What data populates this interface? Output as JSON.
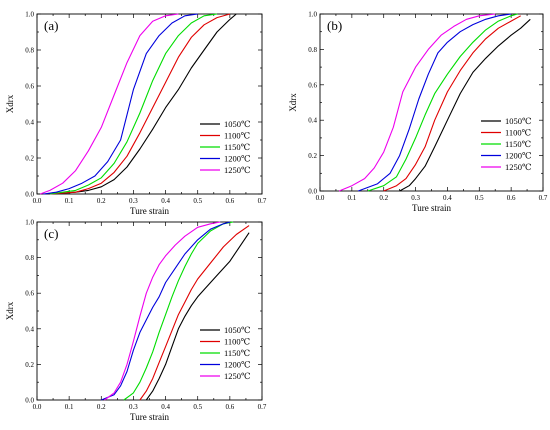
{
  "chart_data": [
    {
      "type": "line",
      "panel_label": "(a)",
      "xlabel": "Ture strain",
      "ylabel": "Xdrx",
      "xlim": [
        0,
        0.7
      ],
      "ylim": [
        0,
        1.0
      ],
      "xticks": [
        "0.0",
        "0.1",
        "0.2",
        "0.3",
        "0.4",
        "0.5",
        "0.6",
        "0.7"
      ],
      "yticks": [
        "0.0",
        "0.2",
        "0.4",
        "0.6",
        "0.8",
        "1.0"
      ],
      "legend": "lower-right",
      "series": [
        {
          "name": "1050℃",
          "color": "#000000",
          "x": [
            0.04,
            0.12,
            0.16,
            0.2,
            0.24,
            0.28,
            0.32,
            0.36,
            0.4,
            0.44,
            0.48,
            0.52,
            0.56,
            0.6,
            0.62
          ],
          "y": [
            0,
            0.01,
            0.02,
            0.04,
            0.08,
            0.15,
            0.25,
            0.36,
            0.48,
            0.58,
            0.7,
            0.8,
            0.9,
            0.97,
            1.0
          ]
        },
        {
          "name": "1100℃",
          "color": "#e00000",
          "x": [
            0.04,
            0.12,
            0.16,
            0.2,
            0.24,
            0.28,
            0.32,
            0.36,
            0.4,
            0.44,
            0.48,
            0.52,
            0.56,
            0.6
          ],
          "y": [
            0,
            0.01,
            0.03,
            0.06,
            0.12,
            0.21,
            0.34,
            0.48,
            0.62,
            0.76,
            0.87,
            0.94,
            0.98,
            1.0
          ]
        },
        {
          "name": "1150℃",
          "color": "#00dd00",
          "x": [
            0.04,
            0.08,
            0.12,
            0.16,
            0.2,
            0.24,
            0.28,
            0.32,
            0.36,
            0.4,
            0.44,
            0.48,
            0.52,
            0.56
          ],
          "y": [
            0,
            0.01,
            0.02,
            0.05,
            0.09,
            0.17,
            0.29,
            0.45,
            0.63,
            0.78,
            0.88,
            0.95,
            0.99,
            1.0
          ]
        },
        {
          "name": "1200℃",
          "color": "#0000dd",
          "x": [
            0.02,
            0.06,
            0.1,
            0.14,
            0.18,
            0.22,
            0.26,
            0.3,
            0.34,
            0.38,
            0.42,
            0.46,
            0.5
          ],
          "y": [
            0,
            0.01,
            0.03,
            0.06,
            0.1,
            0.18,
            0.3,
            0.58,
            0.78,
            0.88,
            0.95,
            0.99,
            1.0
          ]
        },
        {
          "name": "1250℃",
          "color": "#ee00ee",
          "x": [
            0.01,
            0.04,
            0.08,
            0.12,
            0.16,
            0.2,
            0.24,
            0.28,
            0.32,
            0.36,
            0.4,
            0.44
          ],
          "y": [
            0,
            0.02,
            0.06,
            0.13,
            0.24,
            0.37,
            0.55,
            0.73,
            0.88,
            0.96,
            0.99,
            1.0
          ]
        }
      ]
    },
    {
      "type": "line",
      "panel_label": "(b)",
      "xlabel": "Ture strain",
      "ylabel": "Xdrx",
      "xlim": [
        0,
        0.7
      ],
      "ylim": [
        0,
        1.0
      ],
      "xticks": [
        "0.0",
        "0.1",
        "0.2",
        "0.3",
        "0.4",
        "0.5",
        "0.6",
        "0.7"
      ],
      "yticks": [
        "0.0",
        "0.2",
        "0.4",
        "0.6",
        "0.8",
        "1.0"
      ],
      "legend": "lower-right",
      "series": [
        {
          "name": "1050℃",
          "color": "#000000",
          "x": [
            0.25,
            0.28,
            0.3,
            0.33,
            0.36,
            0.4,
            0.44,
            0.48,
            0.52,
            0.56,
            0.6,
            0.63,
            0.66
          ],
          "y": [
            0,
            0.03,
            0.07,
            0.14,
            0.25,
            0.4,
            0.55,
            0.67,
            0.75,
            0.82,
            0.88,
            0.92,
            0.97
          ]
        },
        {
          "name": "1100℃",
          "color": "#e00000",
          "x": [
            0.2,
            0.24,
            0.27,
            0.3,
            0.33,
            0.36,
            0.4,
            0.44,
            0.48,
            0.52,
            0.56,
            0.6,
            0.63
          ],
          "y": [
            0,
            0.03,
            0.07,
            0.15,
            0.25,
            0.4,
            0.56,
            0.68,
            0.78,
            0.86,
            0.92,
            0.96,
            0.99
          ]
        },
        {
          "name": "1150℃",
          "color": "#00dd00",
          "x": [
            0.15,
            0.2,
            0.24,
            0.27,
            0.3,
            0.33,
            0.36,
            0.4,
            0.44,
            0.48,
            0.52,
            0.56,
            0.6,
            0.62
          ],
          "y": [
            0,
            0.03,
            0.08,
            0.18,
            0.3,
            0.43,
            0.55,
            0.66,
            0.76,
            0.84,
            0.91,
            0.96,
            0.99,
            1.0
          ]
        },
        {
          "name": "1200℃",
          "color": "#0000dd",
          "x": [
            0.12,
            0.18,
            0.22,
            0.25,
            0.28,
            0.31,
            0.34,
            0.37,
            0.4,
            0.44,
            0.48,
            0.52,
            0.56,
            0.6
          ],
          "y": [
            0,
            0.04,
            0.1,
            0.2,
            0.35,
            0.52,
            0.66,
            0.78,
            0.84,
            0.9,
            0.94,
            0.97,
            0.99,
            1.0
          ]
        },
        {
          "name": "1250℃",
          "color": "#ee00ee",
          "x": [
            0.06,
            0.1,
            0.14,
            0.17,
            0.2,
            0.23,
            0.26,
            0.3,
            0.34,
            0.38,
            0.42,
            0.46,
            0.5,
            0.55
          ],
          "y": [
            0,
            0.03,
            0.07,
            0.13,
            0.22,
            0.36,
            0.56,
            0.7,
            0.8,
            0.88,
            0.93,
            0.97,
            0.99,
            1.0
          ]
        }
      ]
    },
    {
      "type": "line",
      "panel_label": "(c)",
      "xlabel": "Ture strain",
      "ylabel": "Xdrx",
      "xlim": [
        0,
        0.7
      ],
      "ylim": [
        0,
        1.0
      ],
      "xticks": [
        "0.0",
        "0.1",
        "0.2",
        "0.3",
        "0.4",
        "0.5",
        "0.6",
        "0.7"
      ],
      "yticks": [
        "0.0",
        "0.2",
        "0.4",
        "0.6",
        "0.8",
        "1.0"
      ],
      "legend": "lower-right",
      "series": [
        {
          "name": "1050℃",
          "color": "#000000",
          "x": [
            0.34,
            0.36,
            0.38,
            0.4,
            0.42,
            0.44,
            0.46,
            0.48,
            0.5,
            0.52,
            0.56,
            0.6,
            0.63,
            0.66
          ],
          "y": [
            0,
            0.05,
            0.12,
            0.2,
            0.3,
            0.4,
            0.47,
            0.53,
            0.58,
            0.62,
            0.7,
            0.78,
            0.86,
            0.94
          ]
        },
        {
          "name": "1100℃",
          "color": "#e00000",
          "x": [
            0.32,
            0.34,
            0.36,
            0.38,
            0.4,
            0.42,
            0.44,
            0.46,
            0.48,
            0.5,
            0.54,
            0.58,
            0.62,
            0.66
          ],
          "y": [
            0,
            0.05,
            0.12,
            0.21,
            0.3,
            0.39,
            0.48,
            0.55,
            0.62,
            0.68,
            0.77,
            0.86,
            0.93,
            0.98
          ]
        },
        {
          "name": "1150℃",
          "color": "#00dd00",
          "x": [
            0.27,
            0.3,
            0.32,
            0.34,
            0.36,
            0.38,
            0.4,
            0.42,
            0.44,
            0.46,
            0.48,
            0.5,
            0.54,
            0.58,
            0.61
          ],
          "y": [
            0,
            0.04,
            0.1,
            0.18,
            0.27,
            0.38,
            0.48,
            0.58,
            0.67,
            0.75,
            0.82,
            0.88,
            0.95,
            0.99,
            1.0
          ]
        },
        {
          "name": "1200℃",
          "color": "#0000dd",
          "x": [
            0.2,
            0.24,
            0.26,
            0.28,
            0.3,
            0.32,
            0.34,
            0.36,
            0.38,
            0.4,
            0.43,
            0.46,
            0.5,
            0.54,
            0.58,
            0.6
          ],
          "y": [
            0,
            0.03,
            0.08,
            0.16,
            0.28,
            0.38,
            0.45,
            0.52,
            0.58,
            0.66,
            0.74,
            0.82,
            0.9,
            0.96,
            0.99,
            1.0
          ]
        },
        {
          "name": "1250℃",
          "color": "#ee00ee",
          "x": [
            0.21,
            0.24,
            0.26,
            0.28,
            0.3,
            0.32,
            0.34,
            0.36,
            0.38,
            0.4,
            0.43,
            0.46,
            0.5,
            0.54,
            0.57
          ],
          "y": [
            0,
            0.04,
            0.1,
            0.2,
            0.33,
            0.47,
            0.6,
            0.69,
            0.76,
            0.81,
            0.87,
            0.92,
            0.97,
            0.99,
            1.0
          ]
        }
      ]
    }
  ]
}
